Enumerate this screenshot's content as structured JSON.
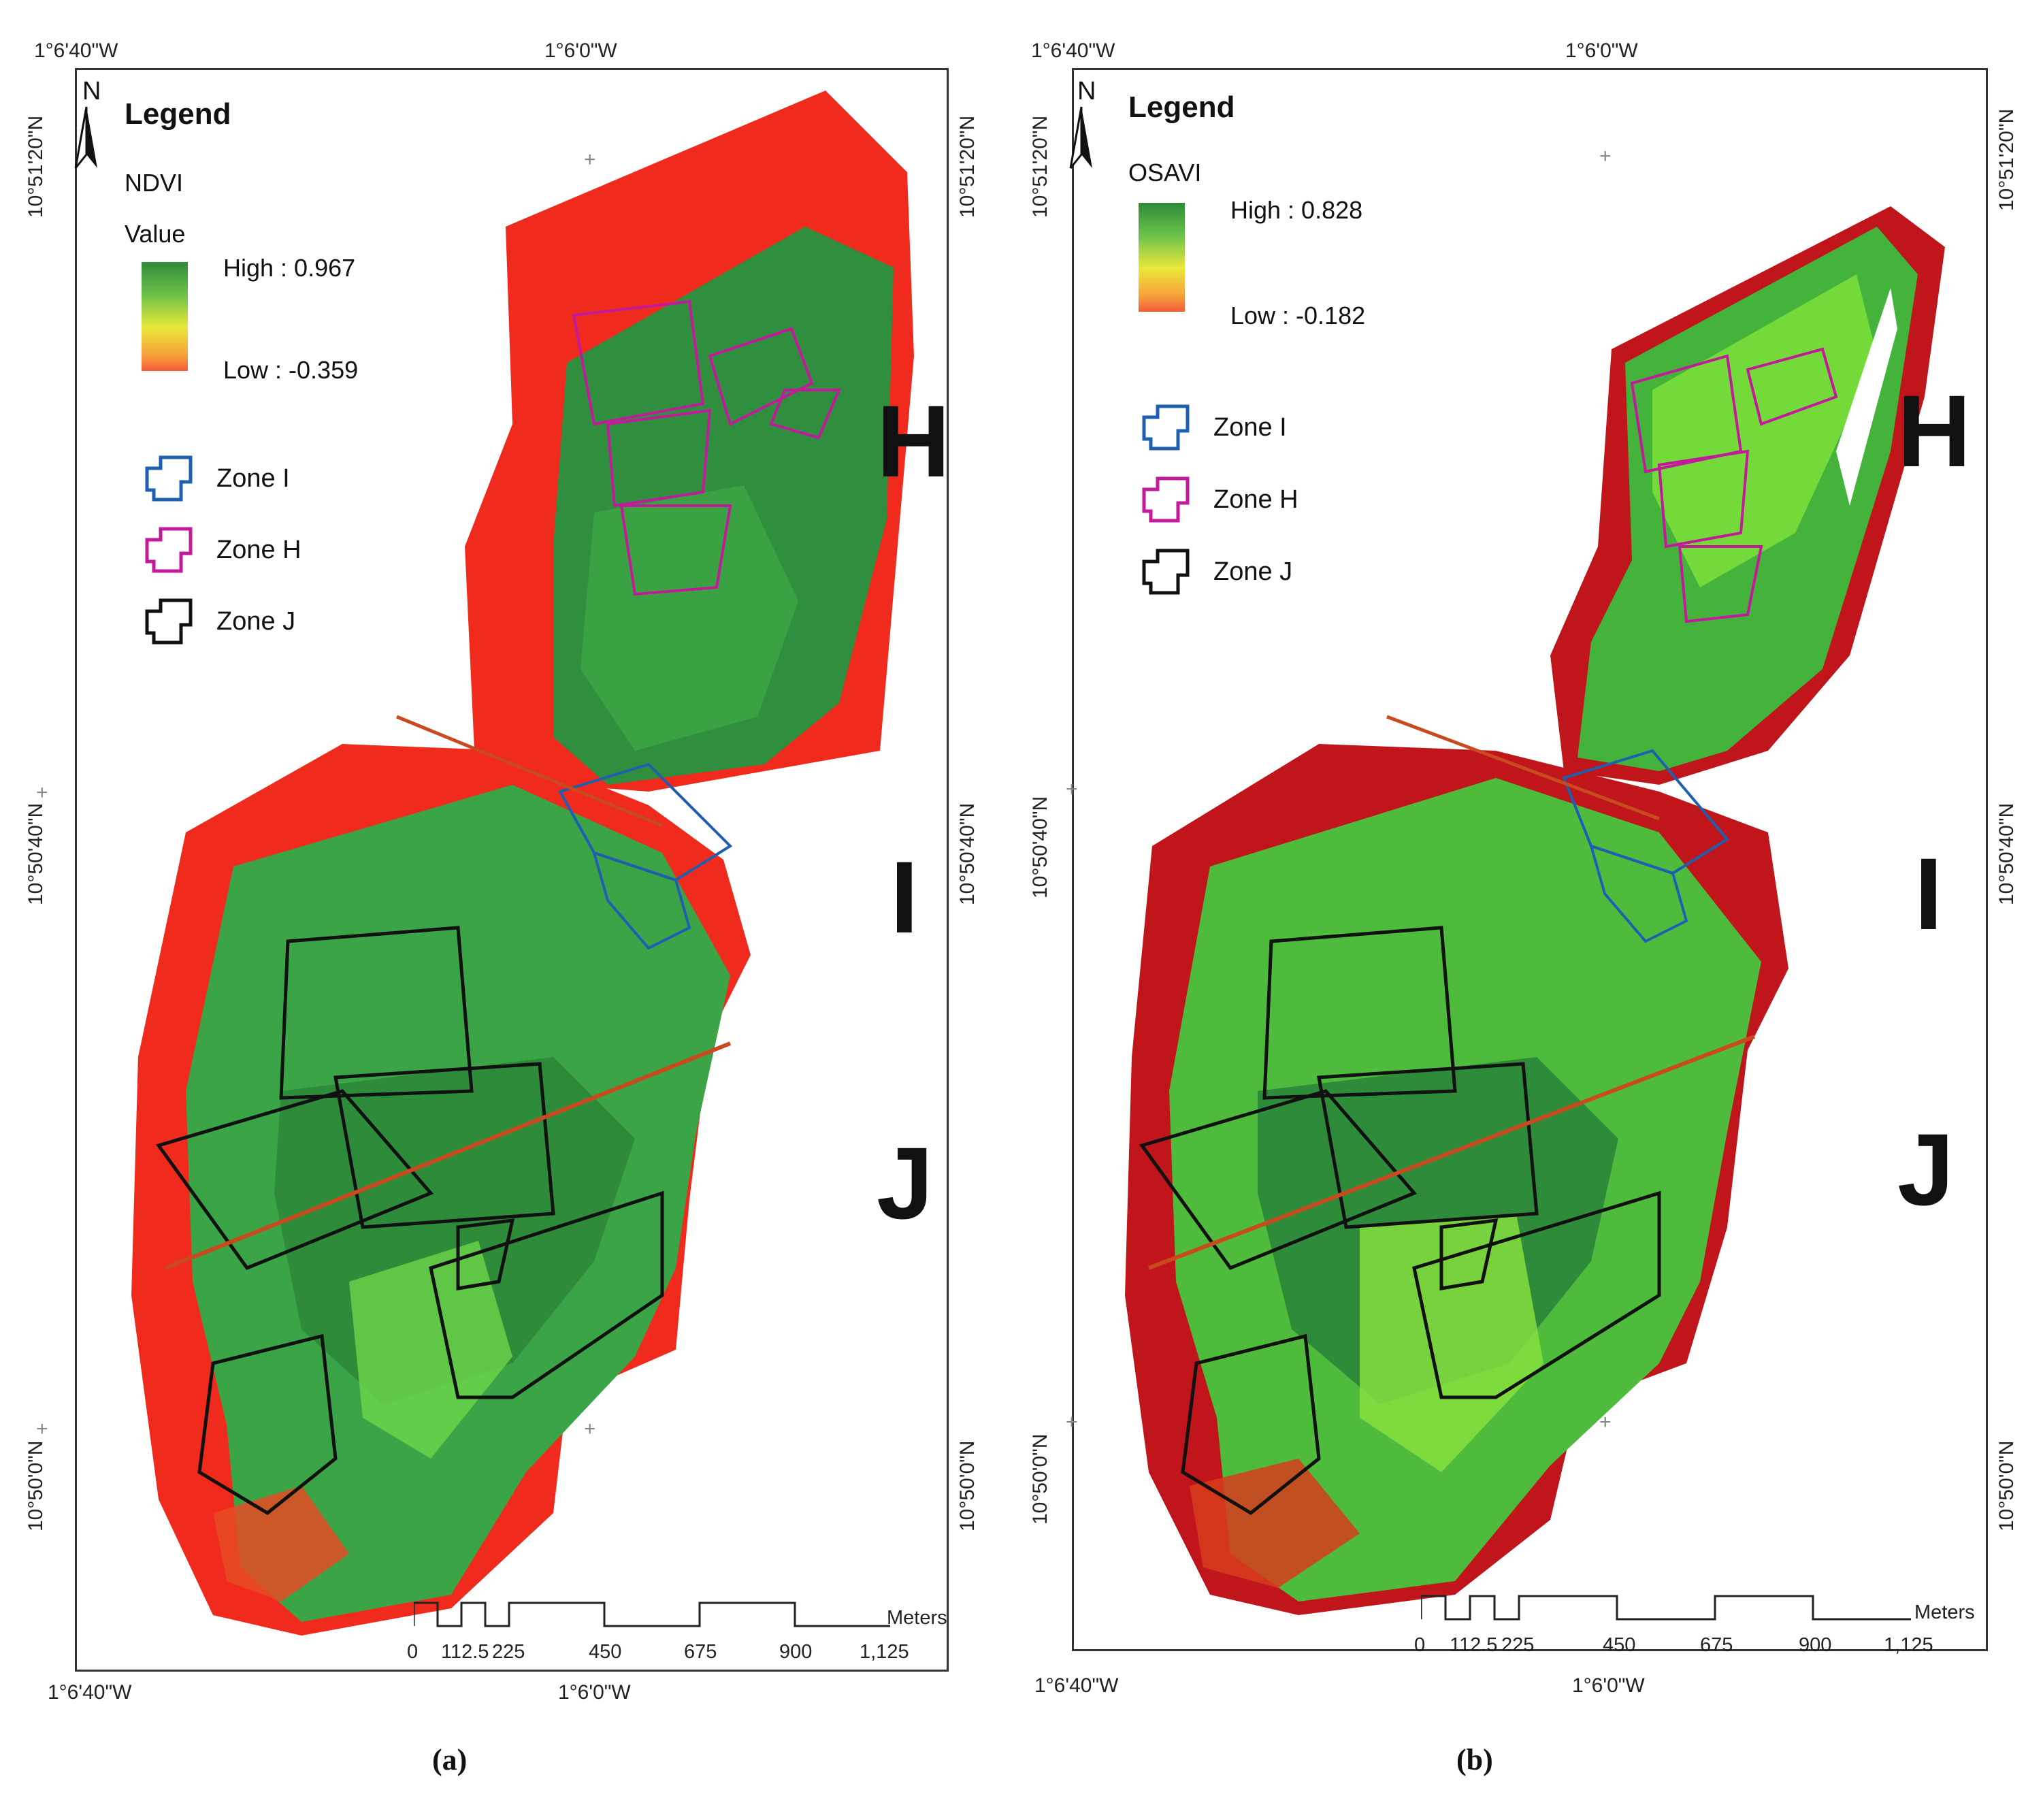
{
  "panels": [
    {
      "caption": "(a)",
      "legend": {
        "title": "Legend",
        "index_name": "NDVI",
        "value_label": "Value",
        "high": "High : 0.967",
        "low": "Low : -0.359",
        "zones": [
          "Zone I",
          "Zone H",
          "Zone J"
        ]
      },
      "north": "N",
      "coords": {
        "top_left": "1°6'40\"W",
        "top_mid": "1°6'0\"W",
        "bottom_left": "1°6'40\"W",
        "bottom_mid": "1°6'0\"W",
        "left_top": "10°51'20\"N",
        "left_mid": "10°50'40\"N",
        "left_bot": "10°50'0\"N",
        "right_top": "10°51'20\"N",
        "right_mid": "10°50'40\"N",
        "right_bot": "10°50'0\"N"
      },
      "zone_letters": [
        "H",
        "I",
        "J"
      ],
      "scale": {
        "unit": "Meters",
        "ticks": [
          "0",
          "112.5",
          "225",
          "450",
          "675",
          "900",
          "1,125"
        ]
      }
    },
    {
      "caption": "(b)",
      "legend": {
        "title": "Legend",
        "index_name": "OSAVI",
        "value_label": "",
        "high": "High : 0.828",
        "low": "Low : -0.182",
        "zones": [
          "Zone I",
          "Zone H",
          "Zone J"
        ]
      },
      "north": "N",
      "coords": {
        "top_left": "1°6'40\"W",
        "top_mid": "1°6'0\"W",
        "bottom_left": "1°6'40\"W",
        "bottom_mid": "1°6'0\"W",
        "left_top": "10°51'20\"N",
        "left_mid": "10°50'40\"N",
        "left_bot": "10°50'0\"N",
        "right_top": "10°51'20\"N",
        "right_mid": "10°50'40\"N",
        "right_bot": "10°50'0\"N"
      },
      "zone_letters": [
        "H",
        "I",
        "J"
      ],
      "scale": {
        "unit": "Meters",
        "ticks": [
          "0",
          "112.5",
          "225",
          "450",
          "675",
          "900",
          "1,125"
        ]
      }
    }
  ],
  "colors": {
    "high": "#2e8b3a",
    "mid": "#7dd13f",
    "low": "#f02a1c",
    "zone_i": "#1f5fb0",
    "zone_h": "#c21a9b",
    "zone_j": "#111111"
  }
}
